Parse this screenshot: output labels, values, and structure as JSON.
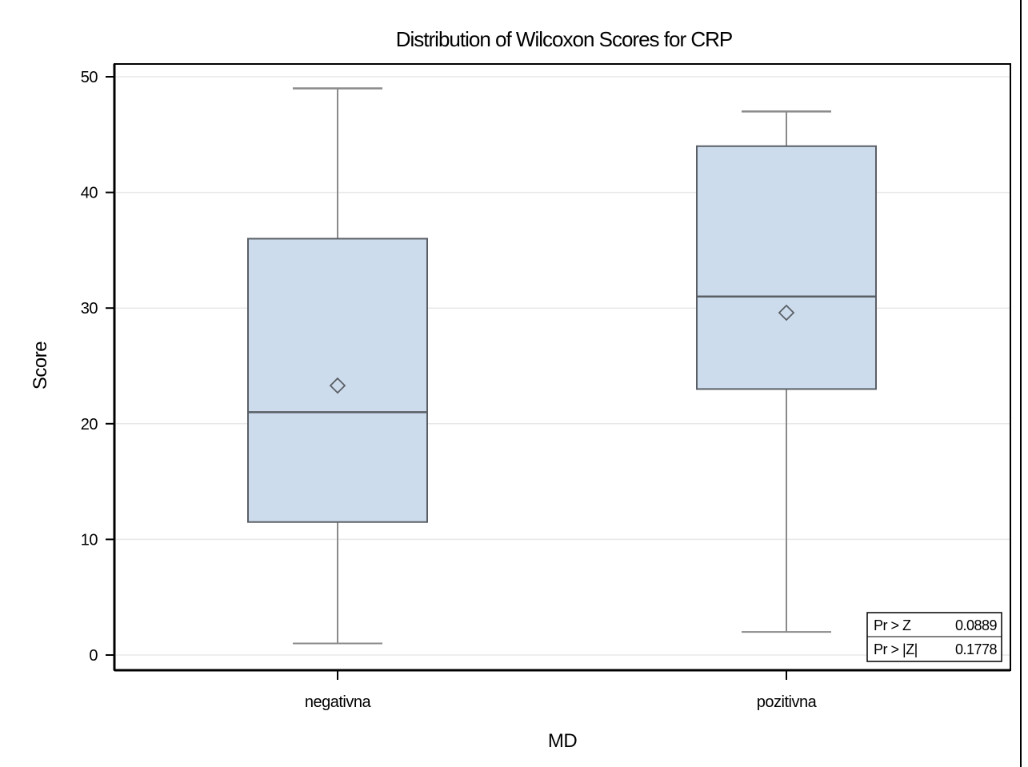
{
  "chart_data": {
    "type": "box",
    "title": "Distribution of Wilcoxon Scores for CRP",
    "xlabel": "MD",
    "ylabel": "Score",
    "ylim": [
      0,
      50
    ],
    "yticks": [
      "0",
      "10",
      "20",
      "30",
      "40",
      "50"
    ],
    "categories": [
      "negativna",
      "pozitivna"
    ],
    "boxes": [
      {
        "category": "negativna",
        "min": 1,
        "q1": 11.5,
        "median": 21,
        "mean": 23.3,
        "q3": 36,
        "max": 49
      },
      {
        "category": "pozitivna",
        "min": 2,
        "q1": 23,
        "median": 31,
        "mean": 29.6,
        "q3": 44,
        "max": 47
      }
    ],
    "grid": true,
    "inset_table": [
      {
        "label": "Pr > Z",
        "value": "0.0889"
      },
      {
        "label": "Pr > |Z|",
        "value": "0.1778"
      }
    ],
    "colors": {
      "box_fill": "#cddcec",
      "box_stroke": "#5a5f66",
      "whisker": "#8a8a8a",
      "grid": "#e8e8e8"
    }
  }
}
